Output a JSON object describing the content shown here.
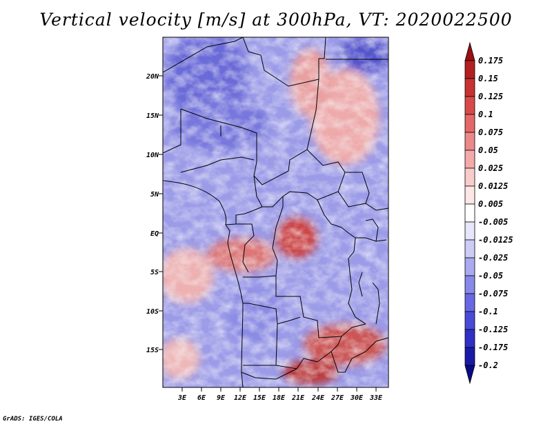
{
  "title": "Vertical velocity [m/s] at 300hPa, VT: 2020022500",
  "credit": "GrADS: IGES/COLA",
  "map": {
    "lat_labels": [
      "20N",
      "15N",
      "10N",
      "5N",
      "EQ",
      "5S",
      "10S",
      "15S"
    ],
    "lon_labels": [
      "3E",
      "6E",
      "9E",
      "12E",
      "15E",
      "18E",
      "21E",
      "24E",
      "27E",
      "30E",
      "33E"
    ]
  },
  "colorbar": {
    "levels": [
      "0.175",
      "0.15",
      "0.125",
      "0.1",
      "0.075",
      "0.05",
      "0.025",
      "0.0125",
      "0.005",
      "-0.005",
      "-0.0125",
      "-0.025",
      "-0.05",
      "-0.075",
      "-0.1",
      "-0.125",
      "-0.175",
      "-0.2"
    ],
    "colors": [
      "#9b1010",
      "#b41f1f",
      "#c83232",
      "#d84a4a",
      "#e46868",
      "#ec8888",
      "#f4aaaa",
      "#f9cccc",
      "#fce6e6",
      "#ffffff",
      "#e6e6fc",
      "#ccccf7",
      "#aaaaf1",
      "#8888ea",
      "#6868e2",
      "#4a4ad8",
      "#3030c6",
      "#1a1aa8",
      "#0a0a86"
    ]
  }
}
